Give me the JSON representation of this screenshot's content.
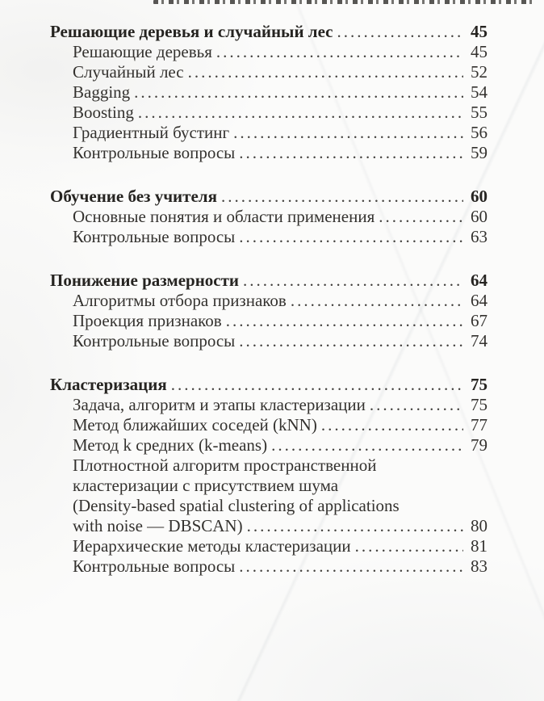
{
  "colors": {
    "paper": "#fbfbfa",
    "ink": "#34322f",
    "ink_bold": "#262421"
  },
  "toc": {
    "sections": [
      {
        "entries": [
          {
            "text": "Решающие деревья и случайный лес",
            "bold": true,
            "indent": 0,
            "page": "45"
          },
          {
            "text": "Решающие деревья",
            "bold": false,
            "indent": 1,
            "page": "45"
          },
          {
            "text": "Случайный лес",
            "bold": false,
            "indent": 1,
            "page": "52"
          },
          {
            "text": "Bagging",
            "bold": false,
            "indent": 1,
            "page": "54"
          },
          {
            "text": "Boosting",
            "bold": false,
            "indent": 1,
            "page": "55"
          },
          {
            "text": "Градиентный бустинг",
            "bold": false,
            "indent": 1,
            "page": "56"
          },
          {
            "text": "Контрольные вопросы",
            "bold": false,
            "indent": 1,
            "page": "59"
          }
        ]
      },
      {
        "entries": [
          {
            "text": "Обучение без учителя",
            "bold": true,
            "indent": 0,
            "page": "60"
          },
          {
            "text": "Основные понятия и области применения",
            "bold": false,
            "indent": 1,
            "page": "60"
          },
          {
            "text": "Контрольные вопросы",
            "bold": false,
            "indent": 1,
            "page": "63"
          }
        ]
      },
      {
        "entries": [
          {
            "text": "Понижение размерности",
            "bold": true,
            "indent": 0,
            "page": "64"
          },
          {
            "text": "Алгоритмы отбора признаков",
            "bold": false,
            "indent": 1,
            "page": "64"
          },
          {
            "text": "Проекция признаков",
            "bold": false,
            "indent": 1,
            "page": "67"
          },
          {
            "text": "Контрольные вопросы",
            "bold": false,
            "indent": 1,
            "page": "74"
          }
        ]
      },
      {
        "entries": [
          {
            "text": "Кластеризация",
            "bold": true,
            "indent": 0,
            "page": "75"
          },
          {
            "text": "Задача, алгоритм и этапы кластеризации",
            "bold": false,
            "indent": 1,
            "page": "75"
          },
          {
            "text": "Метод ближайших соседей (kNN)",
            "bold": false,
            "indent": 1,
            "page": "77"
          },
          {
            "text": "Метод k средних (k-means)",
            "bold": false,
            "indent": 1,
            "page": "79"
          },
          {
            "text": "Плотностной алгоритм пространственной",
            "bold": false,
            "indent": 1,
            "page": null
          },
          {
            "text": "кластеризации с присутствием шума",
            "bold": false,
            "indent": 1,
            "page": null
          },
          {
            "text": "(Density-based spatial clustering of applications",
            "bold": false,
            "indent": 1,
            "page": null
          },
          {
            "text": "with noise — DBSCAN)",
            "bold": false,
            "indent": 1,
            "page": "80"
          },
          {
            "text": "Иерархические методы кластеризации",
            "bold": false,
            "indent": 1,
            "page": "81"
          },
          {
            "text": "Контрольные вопросы",
            "bold": false,
            "indent": 1,
            "page": "83"
          }
        ]
      }
    ]
  }
}
